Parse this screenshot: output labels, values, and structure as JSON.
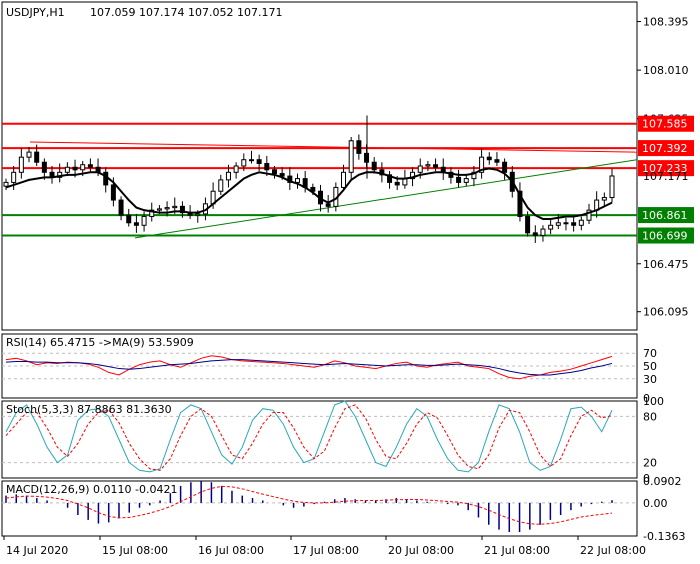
{
  "header": {
    "symbol_label": "USDJPY,H1",
    "ohlc_text": "107.059 107.174 107.052 107.171"
  },
  "colors": {
    "candle": "#000000",
    "ma": "#000000",
    "resistance": "#ff0000",
    "support": "#008000",
    "trendline": "#008000",
    "price_tag_red": "#ff0000",
    "price_tag_green": "#008000",
    "rsi": "#ff0000",
    "rsi_ma": "#00008b",
    "stoch_main": "#2aa7b8",
    "stoch_signal": "#ff0000",
    "macd_hist": "#00008b",
    "macd_signal": "#ff0000",
    "grid": "#bfbfbf"
  },
  "chart_data": [
    {
      "type": "candlestick",
      "symbol": "USDJPY",
      "timeframe": "H1",
      "ylim": [
        105.95,
        108.55
      ],
      "y_ticks": [
        "108.395",
        "108.010",
        "107.625",
        "106.475",
        "106.095"
      ],
      "last_price": "107.171",
      "levels": [
        {
          "label": "107.585",
          "value": 107.585,
          "color": "red"
        },
        {
          "label": "107.392",
          "value": 107.392,
          "color": "red"
        },
        {
          "label": "107.233",
          "value": 107.233,
          "color": "red"
        },
        {
          "label": "106.861",
          "value": 106.861,
          "color": "green"
        },
        {
          "label": "106.699",
          "value": 106.699,
          "color": "green"
        }
      ],
      "x_ticks": [
        "14 Jul 2020",
        "15 Jul 08:00",
        "16 Jul 08:00",
        "17 Jul 08:00",
        "20 Jul 08:00",
        "21 Jul 08:00",
        "22 Jul 08:00"
      ],
      "close_path": [
        107.12,
        107.2,
        107.32,
        107.36,
        107.28,
        107.2,
        107.16,
        107.2,
        107.24,
        107.22,
        107.26,
        107.24,
        107.2,
        107.1,
        106.98,
        106.86,
        106.8,
        106.78,
        106.85,
        106.9,
        106.91,
        106.92,
        106.93,
        106.88,
        106.86,
        106.87,
        106.95,
        107.05,
        107.14,
        107.2,
        107.25,
        107.3,
        107.3,
        107.27,
        107.22,
        107.19,
        107.17,
        107.12,
        107.15,
        107.08,
        107.05,
        106.95,
        106.93,
        107.08,
        107.2,
        107.45,
        107.35,
        107.28,
        107.22,
        107.18,
        107.12,
        107.1,
        107.15,
        107.2,
        107.25,
        107.26,
        107.24,
        107.2,
        107.16,
        107.12,
        107.15,
        107.2,
        107.32,
        107.3,
        107.28,
        107.2,
        107.05,
        106.85,
        106.72,
        106.7,
        106.75,
        106.78,
        106.8,
        106.8,
        106.78,
        106.82,
        106.9,
        106.98,
        107.0,
        107.171
      ],
      "ma_path": [
        107.08,
        107.1,
        107.12,
        107.14,
        107.15,
        107.16,
        107.16,
        107.17,
        107.18,
        107.18,
        107.19,
        107.2,
        107.2,
        107.17,
        107.12,
        107.05,
        106.98,
        106.92,
        106.9,
        106.89,
        106.88,
        106.88,
        106.89,
        106.89,
        106.88,
        106.88,
        106.9,
        106.95,
        107.0,
        107.05,
        107.1,
        107.15,
        107.18,
        107.2,
        107.19,
        107.18,
        107.16,
        107.13,
        107.11,
        107.08,
        107.04,
        106.99,
        106.96,
        106.99,
        107.06,
        107.14,
        107.18,
        107.2,
        107.2,
        107.19,
        107.17,
        107.15,
        107.15,
        107.16,
        107.18,
        107.19,
        107.2,
        107.2,
        107.19,
        107.18,
        107.18,
        107.19,
        107.22,
        107.23,
        107.22,
        107.19,
        107.13,
        107.02,
        106.92,
        106.86,
        106.83,
        106.83,
        106.84,
        106.85,
        106.85,
        106.86,
        106.88,
        106.9,
        106.93,
        106.96
      ]
    },
    {
      "type": "line",
      "indicator": "RSI",
      "label": "RSI(14) 65.4715  ->MA(9) 53.5909",
      "levels": [
        "70",
        "50",
        "30",
        "0"
      ],
      "ylim": [
        0,
        100
      ],
      "rsi_path": [
        60,
        62,
        58,
        52,
        55,
        54,
        56,
        55,
        53,
        48,
        40,
        36,
        45,
        52,
        56,
        58,
        52,
        48,
        55,
        62,
        66,
        64,
        60,
        58,
        57,
        56,
        55,
        54,
        52,
        50,
        48,
        52,
        58,
        55,
        50,
        48,
        46,
        50,
        54,
        56,
        50,
        48,
        52,
        54,
        56,
        50,
        48,
        46,
        38,
        32,
        30,
        34,
        36,
        40,
        42,
        45,
        50,
        55,
        60,
        65
      ],
      "ma_path": [
        56,
        57,
        57,
        56,
        56,
        55,
        55,
        55,
        54,
        52,
        49,
        46,
        45,
        46,
        48,
        50,
        52,
        53,
        54,
        56,
        58,
        59,
        60,
        60,
        59,
        58,
        57,
        56,
        55,
        54,
        53,
        52,
        53,
        54,
        53,
        52,
        51,
        50,
        51,
        52,
        52,
        51,
        51,
        52,
        53,
        52,
        51,
        49,
        46,
        42,
        39,
        37,
        36,
        36,
        38,
        40,
        43,
        47,
        50,
        54
      ]
    },
    {
      "type": "line",
      "indicator": "Stochastic",
      "label": "Stoch(5,3,3) 87.8863 81.3630",
      "levels": [
        "100",
        "80",
        "20",
        "0"
      ],
      "ylim": [
        0,
        100
      ],
      "main_path": [
        60,
        85,
        95,
        70,
        40,
        20,
        30,
        75,
        88,
        90,
        80,
        50,
        20,
        10,
        8,
        12,
        50,
        85,
        95,
        90,
        60,
        30,
        18,
        40,
        75,
        90,
        88,
        70,
        40,
        20,
        25,
        60,
        95,
        100,
        80,
        50,
        20,
        15,
        40,
        70,
        90,
        80,
        50,
        25,
        10,
        8,
        20,
        60,
        95,
        90,
        60,
        20,
        10,
        15,
        50,
        90,
        92,
        80,
        60,
        88
      ],
      "signal_path": [
        55,
        70,
        85,
        85,
        65,
        40,
        28,
        45,
        70,
        85,
        88,
        72,
        45,
        25,
        12,
        10,
        25,
        55,
        80,
        90,
        80,
        55,
        30,
        25,
        45,
        70,
        85,
        85,
        65,
        40,
        25,
        35,
        65,
        90,
        95,
        78,
        50,
        28,
        25,
        45,
        70,
        85,
        78,
        55,
        30,
        15,
        12,
        30,
        65,
        88,
        85,
        60,
        30,
        15,
        25,
        55,
        80,
        88,
        78,
        81
      ]
    },
    {
      "type": "bar",
      "indicator": "MACD",
      "label": "MACD(12,26,9) 0.0110 -0.0421",
      "ticks": [
        "0.0902",
        "0.00",
        "-0.1363"
      ],
      "ylim": [
        -0.1363,
        0.0902
      ],
      "hist": [
        0.03,
        0.035,
        0.03,
        0.02,
        0.01,
        0.0,
        -0.02,
        -0.05,
        -0.07,
        -0.085,
        -0.08,
        -0.06,
        -0.04,
        -0.02,
        -0.01,
        0.01,
        0.04,
        0.07,
        0.085,
        0.09,
        0.085,
        0.07,
        0.05,
        0.03,
        0.02,
        0.01,
        0.0,
        -0.01,
        -0.02,
        -0.015,
        -0.005,
        0.005,
        0.015,
        0.02,
        0.015,
        0.01,
        0.01,
        0.015,
        0.02,
        0.015,
        0.01,
        0.005,
        0.0,
        -0.005,
        -0.01,
        -0.03,
        -0.06,
        -0.09,
        -0.11,
        -0.12,
        -0.12,
        -0.11,
        -0.09,
        -0.07,
        -0.05,
        -0.03,
        -0.015,
        -0.005,
        0.005,
        0.011
      ],
      "signal": [
        0.02,
        0.025,
        0.028,
        0.027,
        0.024,
        0.018,
        0.01,
        -0.005,
        -0.02,
        -0.04,
        -0.055,
        -0.062,
        -0.06,
        -0.052,
        -0.042,
        -0.03,
        -0.015,
        0.005,
        0.025,
        0.045,
        0.06,
        0.068,
        0.066,
        0.058,
        0.047,
        0.036,
        0.026,
        0.016,
        0.007,
        0.002,
        0.0,
        0.0,
        0.003,
        0.007,
        0.009,
        0.01,
        0.01,
        0.011,
        0.013,
        0.014,
        0.014,
        0.012,
        0.009,
        0.006,
        0.003,
        -0.004,
        -0.015,
        -0.03,
        -0.048,
        -0.065,
        -0.078,
        -0.086,
        -0.088,
        -0.085,
        -0.078,
        -0.068,
        -0.058,
        -0.052,
        -0.047,
        -0.042
      ]
    }
  ]
}
